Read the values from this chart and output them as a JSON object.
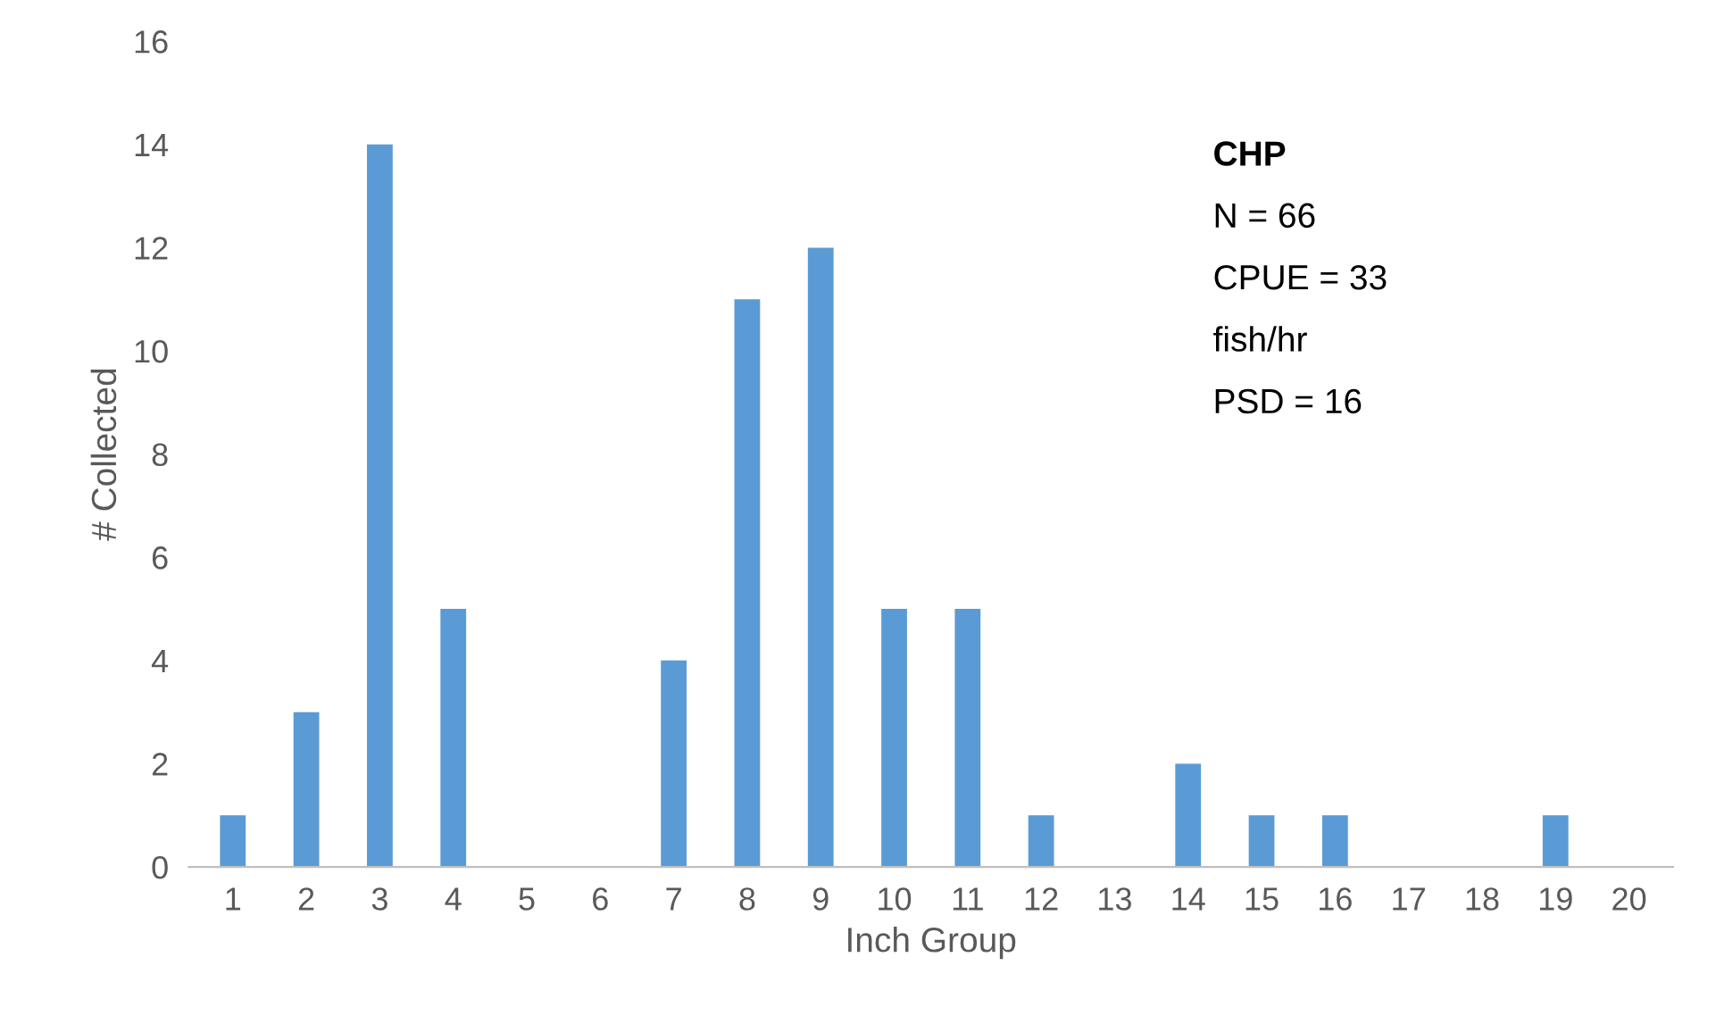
{
  "chart_data": {
    "type": "bar",
    "xlabel": "Inch Group",
    "ylabel": "# Collected",
    "categories": [
      "1",
      "2",
      "3",
      "4",
      "5",
      "6",
      "7",
      "8",
      "9",
      "10",
      "11",
      "12",
      "13",
      "14",
      "15",
      "16",
      "17",
      "18",
      "19",
      "20"
    ],
    "values": [
      1,
      3,
      14,
      5,
      0,
      0,
      4,
      11,
      12,
      5,
      5,
      1,
      0,
      2,
      1,
      1,
      0,
      0,
      1,
      0
    ],
    "color": "#5b9bd5",
    "ylim": [
      0,
      16
    ],
    "yticks": [
      0,
      2,
      4,
      6,
      8,
      10,
      12,
      14,
      16
    ],
    "grid": false,
    "annotations": [
      "CHP",
      "N = 66",
      "CPUE = 33",
      "fish/hr",
      "PSD = 16"
    ]
  }
}
